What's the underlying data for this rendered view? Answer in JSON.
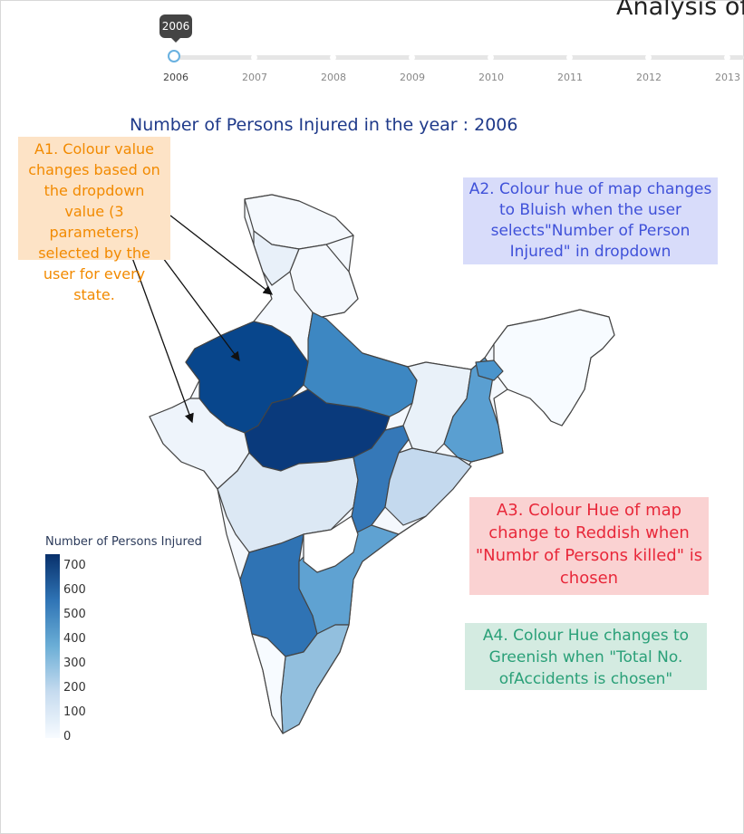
{
  "header": {
    "title": "Analysis of"
  },
  "slider": {
    "tooltip": "2006",
    "years": [
      "2006",
      "2007",
      "2008",
      "2009",
      "2010",
      "2011",
      "2012",
      "2013"
    ],
    "selected": "2006"
  },
  "map": {
    "title": "Number of Persons Injured in the year : 2006",
    "colorscale": [
      "#f7fbff",
      "#c6dbef",
      "#6baed6",
      "#2f74b5",
      "#08306b"
    ]
  },
  "legend": {
    "title": "Number of Persons Injured",
    "ticks": [
      "700",
      "600",
      "500",
      "400",
      "300",
      "200",
      "100",
      "0"
    ]
  },
  "annotations": {
    "a1": "A1. Colour value changes based on the dropdown value (3 parameters) selected by the user for every state.",
    "a2": "A2. Colour hue of map changes to Bluish when the user selects\"Number of Person Injured\" in dropdown",
    "a3": "A3. Colour Hue of map change to Reddish when \"Numbr of Persons killed\" is chosen",
    "a4": "A4. Colour Hue changes to Greenish when \"Total No. ofAccidents is chosen\""
  }
}
